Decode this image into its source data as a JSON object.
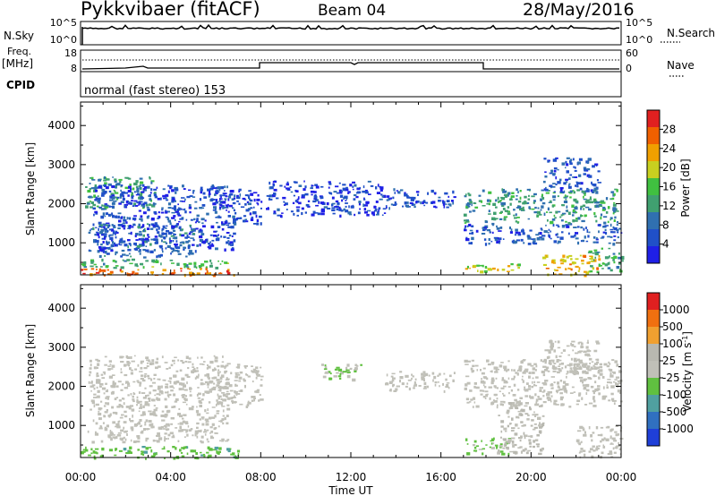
{
  "header": {
    "station": "Pykkvibaer (fitACF)",
    "beam": "Beam 04",
    "date": "28/May/2016"
  },
  "side_labels": {
    "nsky": "N.Sky",
    "nsearch": "N.Search",
    "freq_top": "Freq.",
    "freq_unit": "[MHz]",
    "nave": "Nave",
    "cpid": "CPID",
    "cpid_value": "normal (fast stereo) 153"
  },
  "noise_panel": {
    "left_ticks": [
      "10^5",
      "10^0"
    ],
    "right_ticks": [
      "10^5",
      "10^0"
    ]
  },
  "freq_panel": {
    "left_ticks": [
      "18",
      "8"
    ],
    "right_ticks": [
      "60",
      "0"
    ]
  },
  "colors": {
    "power_scale": [
      "#1f1fe6",
      "#2050c8",
      "#3070b0",
      "#40a070",
      "#40c040",
      "#c8d020",
      "#f0a000",
      "#f06000",
      "#e02020"
    ],
    "velocity_scale": [
      "#1f3fd8",
      "#3070c0",
      "#50a0a0",
      "#60c040",
      "#c0c0b8",
      "#b8b8b0",
      "#f0a030",
      "#f07010",
      "#e02020"
    ]
  },
  "chart_data": [
    {
      "type": "heatmap",
      "panel": "power",
      "ylabel": "Slant Range [km]",
      "ylim": [
        180,
        4600
      ],
      "yticks": [
        1000,
        2000,
        3000,
        4000
      ],
      "xlim": [
        0,
        24
      ],
      "colorbar": {
        "label": "Power [dB]",
        "range": [
          0,
          32
        ],
        "ticks": [
          "4",
          "8",
          "12",
          "16",
          "20",
          "24",
          "28"
        ]
      },
      "regions": [
        {
          "t": [
            0.0,
            7.0
          ],
          "r": [
            180,
            380
          ],
          "level": 26
        },
        {
          "t": [
            0.0,
            6.5
          ],
          "r": [
            380,
            600
          ],
          "level": 14
        },
        {
          "t": [
            0.2,
            3.3
          ],
          "r": [
            1900,
            2700
          ],
          "level": 12
        },
        {
          "t": [
            0.3,
            5.0
          ],
          "r": [
            650,
            1500
          ],
          "level": 8
        },
        {
          "t": [
            0.5,
            6.8
          ],
          "r": [
            800,
            2500
          ],
          "level": 5
        },
        {
          "t": [
            6.0,
            8.0
          ],
          "r": [
            1500,
            2500
          ],
          "level": 5
        },
        {
          "t": [
            8.2,
            13.5
          ],
          "r": [
            1700,
            2600
          ],
          "level": 4
        },
        {
          "t": [
            13.5,
            16.6
          ],
          "r": [
            1900,
            2400
          ],
          "level": 5
        },
        {
          "t": [
            17.0,
            24.0
          ],
          "r": [
            1000,
            1500
          ],
          "level": 6
        },
        {
          "t": [
            17.0,
            23.8
          ],
          "r": [
            1500,
            2400
          ],
          "level": 12
        },
        {
          "t": [
            17.0,
            19.5
          ],
          "r": [
            280,
            500
          ],
          "level": 20
        },
        {
          "t": [
            20.5,
            23.0
          ],
          "r": [
            180,
            700
          ],
          "level": 22
        },
        {
          "t": [
            22.5,
            24.0
          ],
          "r": [
            250,
            900
          ],
          "level": 14
        },
        {
          "t": [
            20.5,
            23.0
          ],
          "r": [
            2300,
            3200
          ],
          "level": 6
        }
      ]
    },
    {
      "type": "heatmap",
      "panel": "velocity",
      "ylabel": "Slant Range [km]",
      "ylim": [
        180,
        4600
      ],
      "yticks": [
        1000,
        2000,
        3000,
        4000
      ],
      "xlim": [
        0,
        24
      ],
      "colorbar": {
        "label": "Velocity [m s",
        "label_sup": "-1",
        "label_end": "]",
        "range": [
          -1200,
          1200
        ],
        "ticks": [
          "1000",
          "500",
          "100",
          "25",
          "-25",
          "-100",
          "-500",
          "-1000"
        ]
      },
      "regions": [
        {
          "t": [
            0.0,
            7.0
          ],
          "r": [
            180,
            480
          ],
          "level": -300
        },
        {
          "t": [
            0.3,
            6.5
          ],
          "r": [
            600,
            2800
          ],
          "level": 0
        },
        {
          "t": [
            6.0,
            8.0
          ],
          "r": [
            1500,
            2600
          ],
          "level": 0
        },
        {
          "t": [
            10.5,
            12.5
          ],
          "r": [
            2200,
            2600
          ],
          "level": -150
        },
        {
          "t": [
            13.5,
            16.6
          ],
          "r": [
            1900,
            2400
          ],
          "level": 0
        },
        {
          "t": [
            17.0,
            24.0
          ],
          "r": [
            1500,
            2700
          ],
          "level": 0
        },
        {
          "t": [
            17.0,
            19.0
          ],
          "r": [
            300,
            700
          ],
          "level": -200
        },
        {
          "t": [
            18.5,
            20.5
          ],
          "r": [
            300,
            1600
          ],
          "level": 150
        },
        {
          "t": [
            22.0,
            24.0
          ],
          "r": [
            200,
            1000
          ],
          "level": 0
        },
        {
          "t": [
            20.5,
            23.0
          ],
          "r": [
            2400,
            3200
          ],
          "level": 0
        }
      ]
    }
  ],
  "xaxis": {
    "label": "Time UT",
    "ticks": [
      "00:00",
      "04:00",
      "08:00",
      "12:00",
      "16:00",
      "20:00",
      "00:00"
    ]
  }
}
